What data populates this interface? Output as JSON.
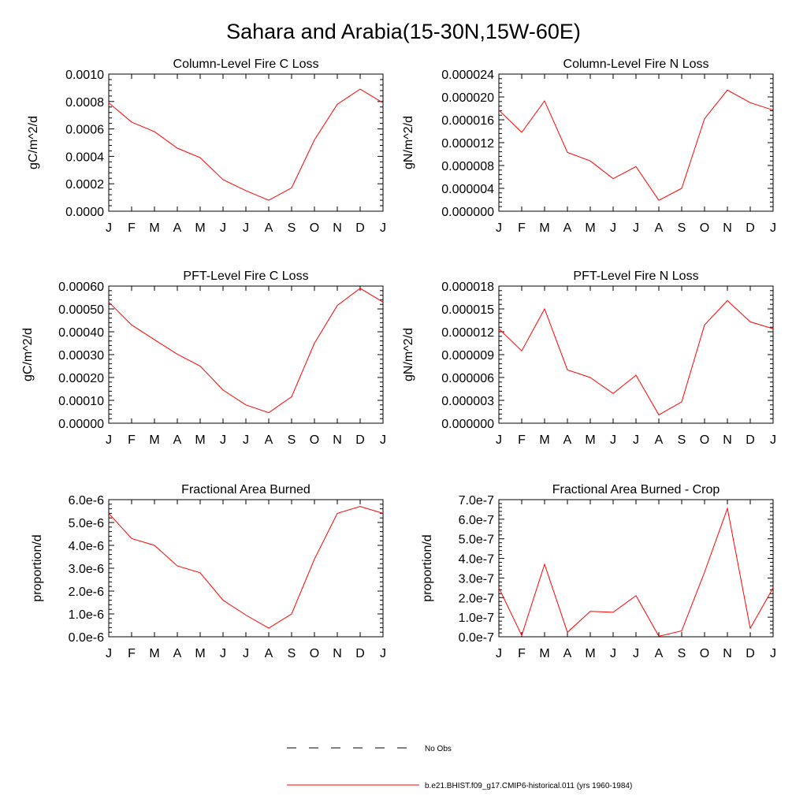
{
  "title": "Sahara and Arabia(15-30N,15W-60E)",
  "legend": {
    "obs_label": "No Obs",
    "model_label": "b.e21.BHIST.f09_g17.CMIP6-historical.011 (yrs 1960-1984)",
    "model_color": "#ff0000"
  },
  "chart_data": [
    {
      "type": "line",
      "title": "Column-Level Fire C Loss",
      "ylabel": "gC/m^2/d",
      "categories": [
        "J",
        "F",
        "M",
        "A",
        "M",
        "J",
        "J",
        "A",
        "S",
        "O",
        "N",
        "D",
        "J"
      ],
      "ylim": [
        0,
        0.001
      ],
      "yticks": [
        "0.0000",
        "0.0002",
        "0.0004",
        "0.0006",
        "0.0008",
        "0.0010"
      ],
      "series": [
        {
          "values": [
            0.00079,
            0.00065,
            0.00058,
            0.00046,
            0.00039,
            0.00023,
            0.00015,
            8e-05,
            0.00017,
            0.00052,
            0.00078,
            0.00089,
            0.00079
          ],
          "color": "#ff0000"
        }
      ]
    },
    {
      "type": "line",
      "title": "Column-Level Fire N Loss",
      "ylabel": "gN/m^2/d",
      "categories": [
        "J",
        "F",
        "M",
        "A",
        "M",
        "J",
        "J",
        "A",
        "S",
        "O",
        "N",
        "D",
        "J"
      ],
      "ylim": [
        0,
        2.4e-05
      ],
      "yticks": [
        "0.000000",
        "0.000004",
        "0.000008",
        "0.000012",
        "0.000016",
        "0.000020",
        "0.000024"
      ],
      "series": [
        {
          "values": [
            1.77e-05,
            1.38e-05,
            1.93e-05,
            1.03e-05,
            8.8e-06,
            5.7e-06,
            7.8e-06,
            1.9e-06,
            4e-06,
            1.62e-05,
            2.12e-05,
            1.9e-05,
            1.77e-05
          ],
          "color": "#ff0000"
        }
      ]
    },
    {
      "type": "line",
      "title": "PFT-Level Fire C Loss",
      "ylabel": "gC/m^2/d",
      "categories": [
        "J",
        "F",
        "M",
        "A",
        "M",
        "J",
        "J",
        "A",
        "S",
        "O",
        "N",
        "D",
        "J"
      ],
      "ylim": [
        0,
        0.0006
      ],
      "yticks": [
        "0.00000",
        "0.00010",
        "0.00020",
        "0.00030",
        "0.00040",
        "0.00050",
        "0.00060"
      ],
      "series": [
        {
          "values": [
            0.00053,
            0.00043,
            0.000365,
            0.000302,
            0.00025,
            0.000145,
            8e-05,
            4.6e-05,
            0.000116,
            0.00035,
            0.000515,
            0.00059,
            0.00053
          ],
          "color": "#ff0000"
        }
      ]
    },
    {
      "type": "line",
      "title": "PFT-Level Fire N Loss",
      "ylabel": "gN/m^2/d",
      "categories": [
        "J",
        "F",
        "M",
        "A",
        "M",
        "J",
        "J",
        "A",
        "S",
        "O",
        "N",
        "D",
        "J"
      ],
      "ylim": [
        0,
        1.8e-05
      ],
      "yticks": [
        "0.000000",
        "0.000003",
        "0.000006",
        "0.000009",
        "0.000012",
        "0.000015",
        "0.000018"
      ],
      "series": [
        {
          "values": [
            1.24e-05,
            9.5e-06,
            1.5e-05,
            7e-06,
            6e-06,
            3.9e-06,
            6.3e-06,
            1.1e-06,
            2.8e-06,
            1.29e-05,
            1.61e-05,
            1.33e-05,
            1.24e-05
          ],
          "color": "#ff0000"
        }
      ]
    },
    {
      "type": "line",
      "title": "Fractional Area Burned",
      "ylabel": "proportion/d",
      "categories": [
        "J",
        "F",
        "M",
        "A",
        "M",
        "J",
        "J",
        "A",
        "S",
        "O",
        "N",
        "D",
        "J"
      ],
      "ylim": [
        0,
        6e-06
      ],
      "yticks": [
        "0.0e-6",
        "1.0e-6",
        "2.0e-6",
        "3.0e-6",
        "4.0e-6",
        "5.0e-6",
        "6.0e-6"
      ],
      "series": [
        {
          "values": [
            5.4e-06,
            4.3e-06,
            4e-06,
            3.1e-06,
            2.8e-06,
            1.6e-06,
            9.5e-07,
            3.8e-07,
            1e-06,
            3.4e-06,
            5.4e-06,
            5.7e-06,
            5.4e-06
          ],
          "color": "#ff0000"
        }
      ]
    },
    {
      "type": "line",
      "title": "Fractional Area Burned - Crop",
      "ylabel": "proportion/d",
      "categories": [
        "J",
        "F",
        "M",
        "A",
        "M",
        "J",
        "J",
        "A",
        "S",
        "O",
        "N",
        "D",
        "J"
      ],
      "ylim": [
        0,
        7e-07
      ],
      "yticks": [
        "0.0e-7",
        "1.0e-7",
        "2.0e-7",
        "3.0e-7",
        "4.0e-7",
        "5.0e-7",
        "6.0e-7",
        "7.0e-7"
      ],
      "series": [
        {
          "values": [
            2.5e-07,
            7e-09,
            3.7e-07,
            2.3e-08,
            1.3e-07,
            1.25e-07,
            2.1e-07,
            3e-09,
            3e-08,
            3.3e-07,
            6.55e-07,
            4.3e-08,
            2.5e-07
          ],
          "color": "#ff0000"
        }
      ]
    }
  ]
}
